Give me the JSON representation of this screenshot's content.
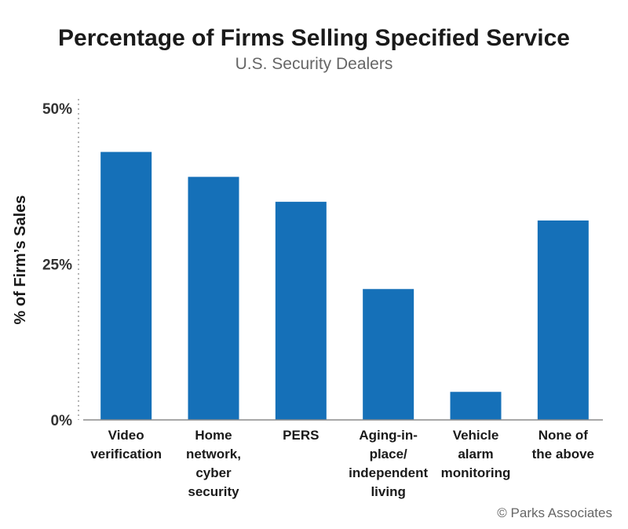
{
  "chart_data": {
    "type": "bar",
    "title": "Percentage of Firms Selling Specified Service",
    "subtitle": "U.S. Security Dealers",
    "ylabel": "% of Firm’s Sales",
    "xlabel": "",
    "ylim": [
      0,
      50
    ],
    "yticks": [
      {
        "value": 0,
        "label": "0%"
      },
      {
        "value": 25,
        "label": "25%"
      },
      {
        "value": 50,
        "label": "50%"
      }
    ],
    "grid": false,
    "legend": "none",
    "bar_color": "#1570b8",
    "categories": [
      [
        "Video",
        "verification"
      ],
      [
        "Home",
        "network,",
        "cyber",
        "security"
      ],
      [
        "PERS"
      ],
      [
        "Aging-in-",
        "place/",
        "independent",
        "living"
      ],
      [
        "Vehicle",
        "alarm",
        "monitoring"
      ],
      [
        "None of",
        "the above"
      ]
    ],
    "values": [
      43,
      39,
      35,
      21,
      4.5,
      32
    ],
    "credit": "© Parks Associates"
  }
}
